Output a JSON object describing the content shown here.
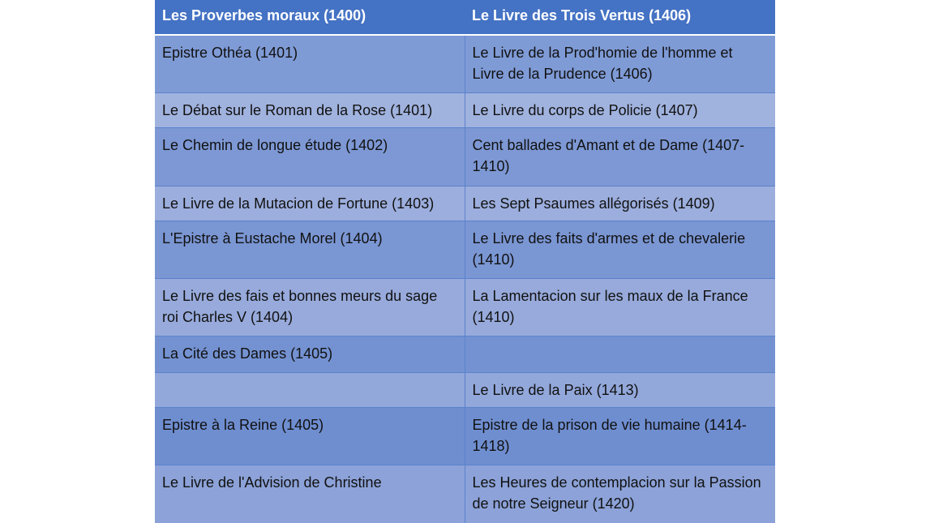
{
  "table": {
    "header": [
      "Les Proverbes moraux (1400)",
      "Le Livre des Trois Vertus (1406)"
    ],
    "rows": [
      [
        "Epistre Othéa (1401)",
        "Le Livre de la Prod'homie de l'homme et Livre de la Prudence (1406)"
      ],
      [
        "Le Débat sur le Roman de la Rose (1401)",
        "Le Livre du corps de Policie (1407)"
      ],
      [
        "Le Chemin de longue étude (1402)",
        "Cent ballades d'Amant et de Dame (1407-1410)"
      ],
      [
        "Le Livre de la Mutacion de Fortune (1403)",
        "Les Sept Psaumes allégorisés (1409)"
      ],
      [
        "L'Epistre à Eustache Morel (1404)",
        "Le Livre des faits d'armes et de chevalerie (1410)"
      ],
      [
        "Le Livre des fais et bonnes meurs du sage roi Charles V (1404)",
        "La Lamentacion sur les maux de la France (1410)"
      ],
      [
        "La Cité des Dames (1405)",
        ""
      ],
      [
        "",
        "Le Livre de la Paix (1413)"
      ],
      [
        "Epistre à la Reine (1405)",
        "Epistre de la prison de vie humaine (1414-1418)"
      ],
      [
        "Le Livre de l'Advision de Christine",
        "Les Heures de contemplacion sur la Passion de notre Seigneur (1420)"
      ]
    ]
  },
  "colors": {
    "header": "#4472C4",
    "row_dark": "#7F9BD6",
    "row_light": "#A0B2DE"
  }
}
